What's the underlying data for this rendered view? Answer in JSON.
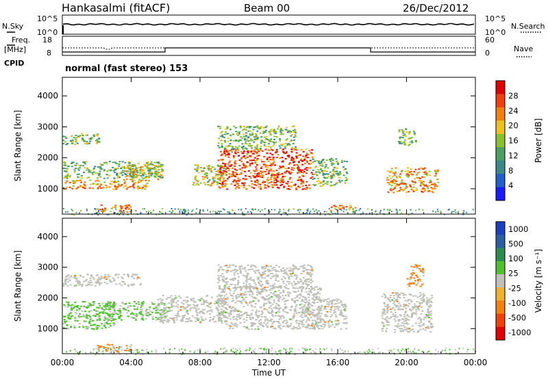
{
  "header": {
    "station": "Hankasalmi (fitACF)",
    "beam": "Beam 00",
    "date": "26/Dec/2012"
  },
  "sky_panel": {
    "left_label": "N.Sky",
    "right_label": "N.Search",
    "ticks_left": [
      "10^5",
      "10^0"
    ],
    "ticks_right": [
      "10^5",
      "10^0"
    ]
  },
  "freq_panel": {
    "left_label_1": "Freq.",
    "left_label_2": "[MHz]",
    "right_label": "Nave",
    "ticks_left": [
      "18",
      "8"
    ],
    "ticks_right": [
      "60",
      "0"
    ]
  },
  "cpid": {
    "label": "CPID",
    "value": "normal (fast stereo) 153"
  },
  "colors": {
    "power": [
      "#1a1aff",
      "#2060c8",
      "#3a8a8a",
      "#4aa060",
      "#8ac030",
      "#f0c020",
      "#f08010",
      "#f04010",
      "#e00000"
    ],
    "velocity": [
      "#e00000",
      "#f04010",
      "#f08010",
      "#f0b030",
      "#c0c0b8",
      "#50c030",
      "#2a8a50",
      "#2a60a0",
      "#1a40c0"
    ]
  },
  "chart_data": [
    {
      "type": "heatmap",
      "title": "Power",
      "xlabel": "",
      "ylabel": "Slant Range [km]",
      "x_ticks": [
        "00:00",
        "04:00",
        "08:00",
        "12:00",
        "16:00",
        "20:00",
        "00:00"
      ],
      "y_ticks": [
        1000,
        2000,
        3000,
        4000
      ],
      "xlim": [
        0,
        24
      ],
      "ylim": [
        180,
        4600
      ],
      "colorbar": {
        "label": "Power [dB]",
        "ticks": [
          4,
          8,
          12,
          16,
          20,
          24,
          28
        ]
      },
      "regions": [
        {
          "t": [
            0.0,
            2.2
          ],
          "r": [
            2450,
            2800
          ],
          "level": 12
        },
        {
          "t": [
            0.0,
            5.0
          ],
          "r": [
            1000,
            1300
          ],
          "level": 20
        },
        {
          "t": [
            0.0,
            5.8
          ],
          "r": [
            1350,
            1900
          ],
          "level": 12
        },
        {
          "t": [
            3.5,
            5.8
          ],
          "r": [
            1300,
            1800
          ],
          "level": 16
        },
        {
          "t": [
            2.0,
            4.0
          ],
          "r": [
            250,
            500
          ],
          "level": 20
        },
        {
          "t": [
            7.5,
            9.5
          ],
          "r": [
            1100,
            1800
          ],
          "level": 16
        },
        {
          "t": [
            9.0,
            14.5
          ],
          "r": [
            1000,
            2300
          ],
          "level": 24
        },
        {
          "t": [
            9.0,
            13.5
          ],
          "r": [
            2300,
            3050
          ],
          "level": 12
        },
        {
          "t": [
            14.5,
            16.5
          ],
          "r": [
            1100,
            2000
          ],
          "level": 12
        },
        {
          "t": [
            15.5,
            17.0
          ],
          "r": [
            300,
            500
          ],
          "level": 20
        },
        {
          "t": [
            18.8,
            21.8
          ],
          "r": [
            900,
            1700
          ],
          "level": 20
        },
        {
          "t": [
            19.5,
            20.5
          ],
          "r": [
            2400,
            3000
          ],
          "level": 12
        }
      ]
    },
    {
      "type": "heatmap",
      "title": "Velocity",
      "xlabel": "Time UT",
      "ylabel": "Slant Range [km]",
      "x_ticks": [
        "00:00",
        "04:00",
        "08:00",
        "12:00",
        "16:00",
        "20:00",
        "00:00"
      ],
      "y_ticks": [
        1000,
        2000,
        3000,
        4000
      ],
      "xlim": [
        0,
        24
      ],
      "ylim": [
        180,
        4600
      ],
      "colorbar": {
        "label": "Velocity [m s⁻¹]",
        "ticks": [
          1000,
          500,
          100,
          25,
          -25,
          -100,
          -500,
          -1000
        ]
      },
      "regions": [
        {
          "t": [
            0.0,
            4.5
          ],
          "r": [
            2400,
            2800
          ],
          "level": 0
        },
        {
          "t": [
            0.0,
            3.0
          ],
          "r": [
            1000,
            1900
          ],
          "level": 100
        },
        {
          "t": [
            2.5,
            6.2
          ],
          "r": [
            1300,
            1900
          ],
          "level": 100
        },
        {
          "t": [
            5.5,
            9.5
          ],
          "r": [
            1200,
            2100
          ],
          "level": 0
        },
        {
          "t": [
            9.0,
            15.0
          ],
          "r": [
            1000,
            2400
          ],
          "level": 0
        },
        {
          "t": [
            9.0,
            14.5
          ],
          "r": [
            2300,
            3100
          ],
          "level": 0
        },
        {
          "t": [
            14.0,
            16.5
          ],
          "r": [
            1000,
            2000
          ],
          "level": 0
        },
        {
          "t": [
            18.5,
            21.5
          ],
          "r": [
            900,
            2200
          ],
          "level": 0
        },
        {
          "t": [
            20.0,
            21.0
          ],
          "r": [
            2400,
            3100
          ],
          "level": -300
        },
        {
          "t": [
            2.0,
            4.0
          ],
          "r": [
            250,
            500
          ],
          "level": -300
        }
      ]
    }
  ]
}
